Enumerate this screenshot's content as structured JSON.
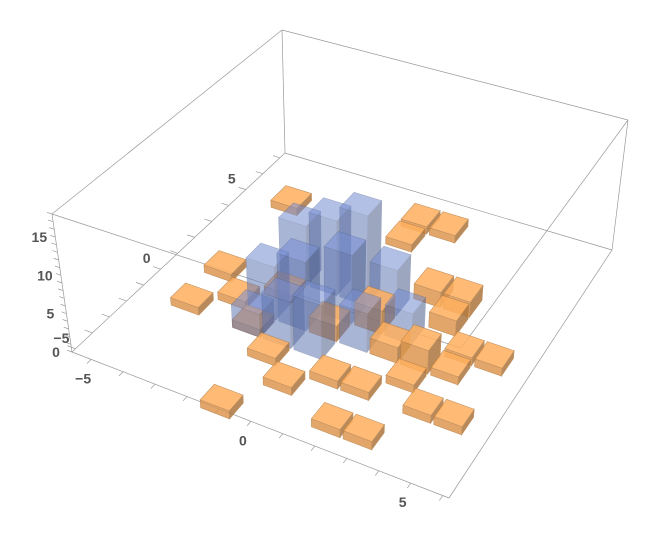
{
  "chart_data": {
    "type": "histogram3d",
    "title": "",
    "xlabel": "",
    "ylabel": "",
    "zlabel": "",
    "xlim": [
      -5.6,
      6.2
    ],
    "ylim": [
      -5.2,
      7.3
    ],
    "zlim": [
      0,
      18
    ],
    "x_ticks": [
      -5,
      0,
      5
    ],
    "y_ticks": [
      -5,
      0,
      5
    ],
    "z_ticks": [
      0,
      5,
      10,
      15
    ],
    "bin_width": 1,
    "series": [
      {
        "color": "#f5a85a",
        "bins": [
          [
            -1,
            -5,
            1
          ],
          [
            2,
            -4,
            1
          ],
          [
            3,
            -4,
            1
          ],
          [
            -4,
            5,
            1
          ],
          [
            -4,
            1,
            1
          ],
          [
            -4,
            -1,
            1
          ],
          [
            0,
            6,
            1
          ],
          [
            0,
            5,
            1
          ],
          [
            1,
            6,
            1
          ],
          [
            -3,
            0,
            1
          ],
          [
            -2,
            1,
            1
          ],
          [
            -1,
            -2,
            1
          ],
          [
            0,
            -3,
            1
          ],
          [
            2,
            -2,
            1
          ],
          [
            3,
            -1,
            1
          ],
          [
            4,
            0,
            1
          ],
          [
            5,
            1,
            1
          ],
          [
            4,
            1,
            1
          ],
          [
            3,
            3,
            2
          ],
          [
            2,
            3,
            2
          ],
          [
            3,
            2,
            2
          ],
          [
            1,
            1,
            3
          ],
          [
            0,
            0,
            2
          ],
          [
            -2,
            -1,
            1
          ],
          [
            1,
            -2,
            1
          ],
          [
            4,
            -2,
            1
          ],
          [
            5,
            -2,
            1
          ],
          [
            2,
            0,
            2
          ],
          [
            3,
            0,
            3
          ]
        ]
      },
      {
        "color": "#6f86c8",
        "bins": [
          [
            -2,
            2,
            8
          ],
          [
            -1,
            2,
            10
          ],
          [
            0,
            2,
            12
          ],
          [
            -2,
            0,
            7
          ],
          [
            -1,
            0,
            9
          ],
          [
            0,
            1,
            9
          ],
          [
            1,
            2,
            6
          ],
          [
            -1,
            -1,
            6
          ],
          [
            0,
            -1,
            7
          ],
          [
            1,
            0,
            5
          ],
          [
            2,
            1,
            4
          ],
          [
            -2,
            -1,
            3
          ]
        ]
      }
    ]
  }
}
